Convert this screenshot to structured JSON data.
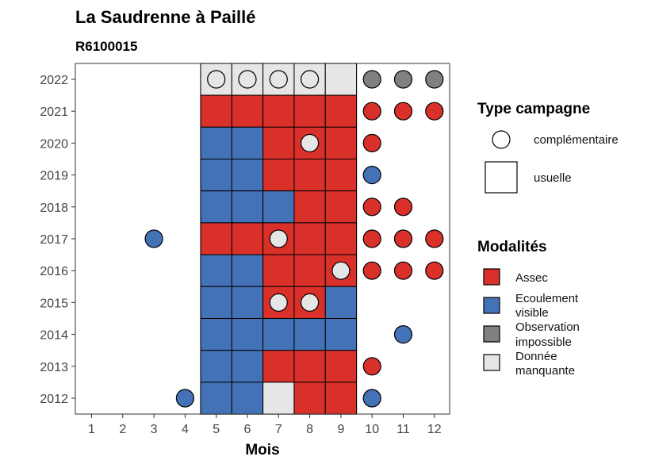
{
  "chart_data": {
    "type": "heatmap",
    "title": "La Saudrenne à Paillé",
    "subtitle": "R6100015",
    "xlabel": "Mois",
    "ylabel": "",
    "x_ticks": [
      "1",
      "2",
      "3",
      "4",
      "5",
      "6",
      "7",
      "8",
      "9",
      "10",
      "11",
      "12"
    ],
    "y_ticks": [
      "2012",
      "2013",
      "2014",
      "2015",
      "2016",
      "2017",
      "2018",
      "2019",
      "2020",
      "2021",
      "2022"
    ],
    "highlight_months": [
      5,
      6,
      7,
      8,
      9
    ],
    "legend_campaign": {
      "title": "Type campagne",
      "items": [
        {
          "key": "circle",
          "label": "complémentaire"
        },
        {
          "key": "square",
          "label": "usuelle"
        }
      ]
    },
    "legend_modalites": {
      "title": "Modalités",
      "items": [
        {
          "key": "assec",
          "label_lines": [
            "Assec"
          ],
          "color": "#d9302a"
        },
        {
          "key": "ecoulement",
          "label_lines": [
            "Ecoulement",
            "visible"
          ],
          "color": "#4472b6"
        },
        {
          "key": "observation",
          "label_lines": [
            "Observation",
            "impossible"
          ],
          "color": "#808080"
        },
        {
          "key": "manquante",
          "label_lines": [
            "Donnée",
            "manquante"
          ],
          "color": "#e6e6e6"
        }
      ]
    },
    "colors": {
      "assec": "#d9302a",
      "ecoulement": "#4472b6",
      "observation": "#808080",
      "manquante": "#e6e6e6"
    },
    "squares": [
      {
        "year": 2022,
        "month": 5,
        "value": "manquante"
      },
      {
        "year": 2022,
        "month": 6,
        "value": "manquante"
      },
      {
        "year": 2022,
        "month": 7,
        "value": "manquante"
      },
      {
        "year": 2022,
        "month": 8,
        "value": "manquante"
      },
      {
        "year": 2022,
        "month": 9,
        "value": "manquante"
      },
      {
        "year": 2021,
        "month": 5,
        "value": "assec"
      },
      {
        "year": 2021,
        "month": 6,
        "value": "assec"
      },
      {
        "year": 2021,
        "month": 7,
        "value": "assec"
      },
      {
        "year": 2021,
        "month": 8,
        "value": "assec"
      },
      {
        "year": 2021,
        "month": 9,
        "value": "assec"
      },
      {
        "year": 2020,
        "month": 5,
        "value": "ecoulement"
      },
      {
        "year": 2020,
        "month": 6,
        "value": "ecoulement"
      },
      {
        "year": 2020,
        "month": 7,
        "value": "assec"
      },
      {
        "year": 2020,
        "month": 8,
        "value": "assec"
      },
      {
        "year": 2020,
        "month": 9,
        "value": "assec"
      },
      {
        "year": 2019,
        "month": 5,
        "value": "ecoulement"
      },
      {
        "year": 2019,
        "month": 6,
        "value": "ecoulement"
      },
      {
        "year": 2019,
        "month": 7,
        "value": "assec"
      },
      {
        "year": 2019,
        "month": 8,
        "value": "assec"
      },
      {
        "year": 2019,
        "month": 9,
        "value": "assec"
      },
      {
        "year": 2018,
        "month": 5,
        "value": "ecoulement"
      },
      {
        "year": 2018,
        "month": 6,
        "value": "ecoulement"
      },
      {
        "year": 2018,
        "month": 7,
        "value": "ecoulement"
      },
      {
        "year": 2018,
        "month": 8,
        "value": "assec"
      },
      {
        "year": 2018,
        "month": 9,
        "value": "assec"
      },
      {
        "year": 2017,
        "month": 5,
        "value": "assec"
      },
      {
        "year": 2017,
        "month": 6,
        "value": "assec"
      },
      {
        "year": 2017,
        "month": 7,
        "value": "assec"
      },
      {
        "year": 2017,
        "month": 8,
        "value": "assec"
      },
      {
        "year": 2017,
        "month": 9,
        "value": "assec"
      },
      {
        "year": 2016,
        "month": 5,
        "value": "ecoulement"
      },
      {
        "year": 2016,
        "month": 6,
        "value": "ecoulement"
      },
      {
        "year": 2016,
        "month": 7,
        "value": "assec"
      },
      {
        "year": 2016,
        "month": 8,
        "value": "assec"
      },
      {
        "year": 2016,
        "month": 9,
        "value": "assec"
      },
      {
        "year": 2015,
        "month": 5,
        "value": "ecoulement"
      },
      {
        "year": 2015,
        "month": 6,
        "value": "ecoulement"
      },
      {
        "year": 2015,
        "month": 7,
        "value": "assec"
      },
      {
        "year": 2015,
        "month": 8,
        "value": "assec"
      },
      {
        "year": 2015,
        "month": 9,
        "value": "ecoulement"
      },
      {
        "year": 2014,
        "month": 5,
        "value": "ecoulement"
      },
      {
        "year": 2014,
        "month": 6,
        "value": "ecoulement"
      },
      {
        "year": 2014,
        "month": 7,
        "value": "ecoulement"
      },
      {
        "year": 2014,
        "month": 8,
        "value": "ecoulement"
      },
      {
        "year": 2014,
        "month": 9,
        "value": "ecoulement"
      },
      {
        "year": 2013,
        "month": 5,
        "value": "ecoulement"
      },
      {
        "year": 2013,
        "month": 6,
        "value": "ecoulement"
      },
      {
        "year": 2013,
        "month": 7,
        "value": "assec"
      },
      {
        "year": 2013,
        "month": 8,
        "value": "assec"
      },
      {
        "year": 2013,
        "month": 9,
        "value": "assec"
      },
      {
        "year": 2012,
        "month": 5,
        "value": "ecoulement"
      },
      {
        "year": 2012,
        "month": 6,
        "value": "ecoulement"
      },
      {
        "year": 2012,
        "month": 7,
        "value": "manquante"
      },
      {
        "year": 2012,
        "month": 8,
        "value": "assec"
      },
      {
        "year": 2012,
        "month": 9,
        "value": "assec"
      }
    ],
    "circles": [
      {
        "year": 2022,
        "month": 5,
        "value": "manquante"
      },
      {
        "year": 2022,
        "month": 6,
        "value": "manquante"
      },
      {
        "year": 2022,
        "month": 7,
        "value": "manquante"
      },
      {
        "year": 2022,
        "month": 8,
        "value": "manquante"
      },
      {
        "year": 2022,
        "month": 10,
        "value": "observation"
      },
      {
        "year": 2022,
        "month": 11,
        "value": "observation"
      },
      {
        "year": 2022,
        "month": 12,
        "value": "observation"
      },
      {
        "year": 2021,
        "month": 10,
        "value": "assec"
      },
      {
        "year": 2021,
        "month": 11,
        "value": "assec"
      },
      {
        "year": 2021,
        "month": 12,
        "value": "assec"
      },
      {
        "year": 2020,
        "month": 8,
        "value": "manquante"
      },
      {
        "year": 2020,
        "month": 10,
        "value": "assec"
      },
      {
        "year": 2019,
        "month": 10,
        "value": "ecoulement"
      },
      {
        "year": 2018,
        "month": 10,
        "value": "assec"
      },
      {
        "year": 2018,
        "month": 11,
        "value": "assec"
      },
      {
        "year": 2017,
        "month": 3,
        "value": "ecoulement"
      },
      {
        "year": 2017,
        "month": 7,
        "value": "manquante"
      },
      {
        "year": 2017,
        "month": 10,
        "value": "assec"
      },
      {
        "year": 2017,
        "month": 11,
        "value": "assec"
      },
      {
        "year": 2017,
        "month": 12,
        "value": "assec"
      },
      {
        "year": 2016,
        "month": 9,
        "value": "manquante"
      },
      {
        "year": 2016,
        "month": 10,
        "value": "assec"
      },
      {
        "year": 2016,
        "month": 11,
        "value": "assec"
      },
      {
        "year": 2016,
        "month": 12,
        "value": "assec"
      },
      {
        "year": 2015,
        "month": 7,
        "value": "manquante"
      },
      {
        "year": 2015,
        "month": 8,
        "value": "manquante"
      },
      {
        "year": 2014,
        "month": 11,
        "value": "ecoulement"
      },
      {
        "year": 2013,
        "month": 10,
        "value": "assec"
      },
      {
        "year": 2012,
        "month": 4,
        "value": "ecoulement"
      },
      {
        "year": 2012,
        "month": 10,
        "value": "ecoulement"
      }
    ]
  }
}
